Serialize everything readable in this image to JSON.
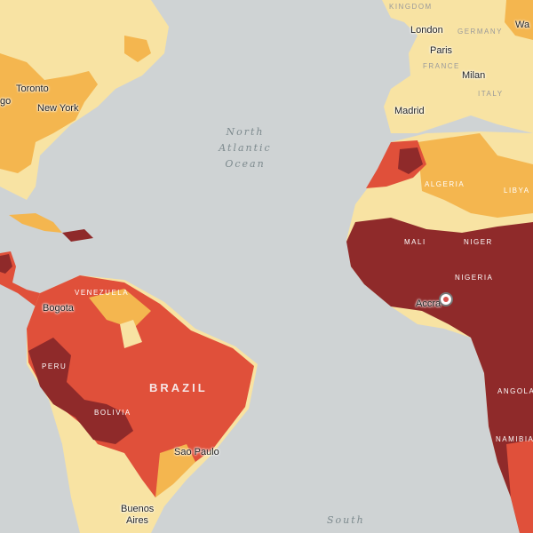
{
  "colors": {
    "ocean": "#cfd3d4",
    "level_1": "#f8e3a3",
    "level_2": "#f4b64f",
    "level_3": "#e0503a",
    "level_4": "#8f2a2a"
  },
  "labels": {
    "toronto": "Toronto",
    "go": "go",
    "new_york": "New York",
    "north_atlantic_ocean": [
      "North",
      "Atlantic",
      "Ocean"
    ],
    "south": "South",
    "kingdom": "KINGDOM",
    "london": "London",
    "germany": "GERMANY",
    "wa": "Wa",
    "paris": "Paris",
    "france": "FRANCE",
    "milan": "Milan",
    "italy": "ITALY",
    "madrid": "Madrid",
    "algeria": "ALGERIA",
    "libya": "LIBYA",
    "mali": "MALI",
    "niger": "NIGER",
    "nigeria": "NIGERIA",
    "accra": "Accra",
    "angola": "ANGOLA",
    "namibia": "NAMIBIA",
    "bogota": "Bogota",
    "venezuela": "VENEZUELA",
    "peru": "PERU",
    "brazil": "BRAZIL",
    "bolivia": "BOLIVIA",
    "sao_paulo": "Sao Paulo",
    "buenos_aires": [
      "Buenos",
      "Aires"
    ]
  },
  "marker": {
    "name": "location-marker-icon"
  }
}
